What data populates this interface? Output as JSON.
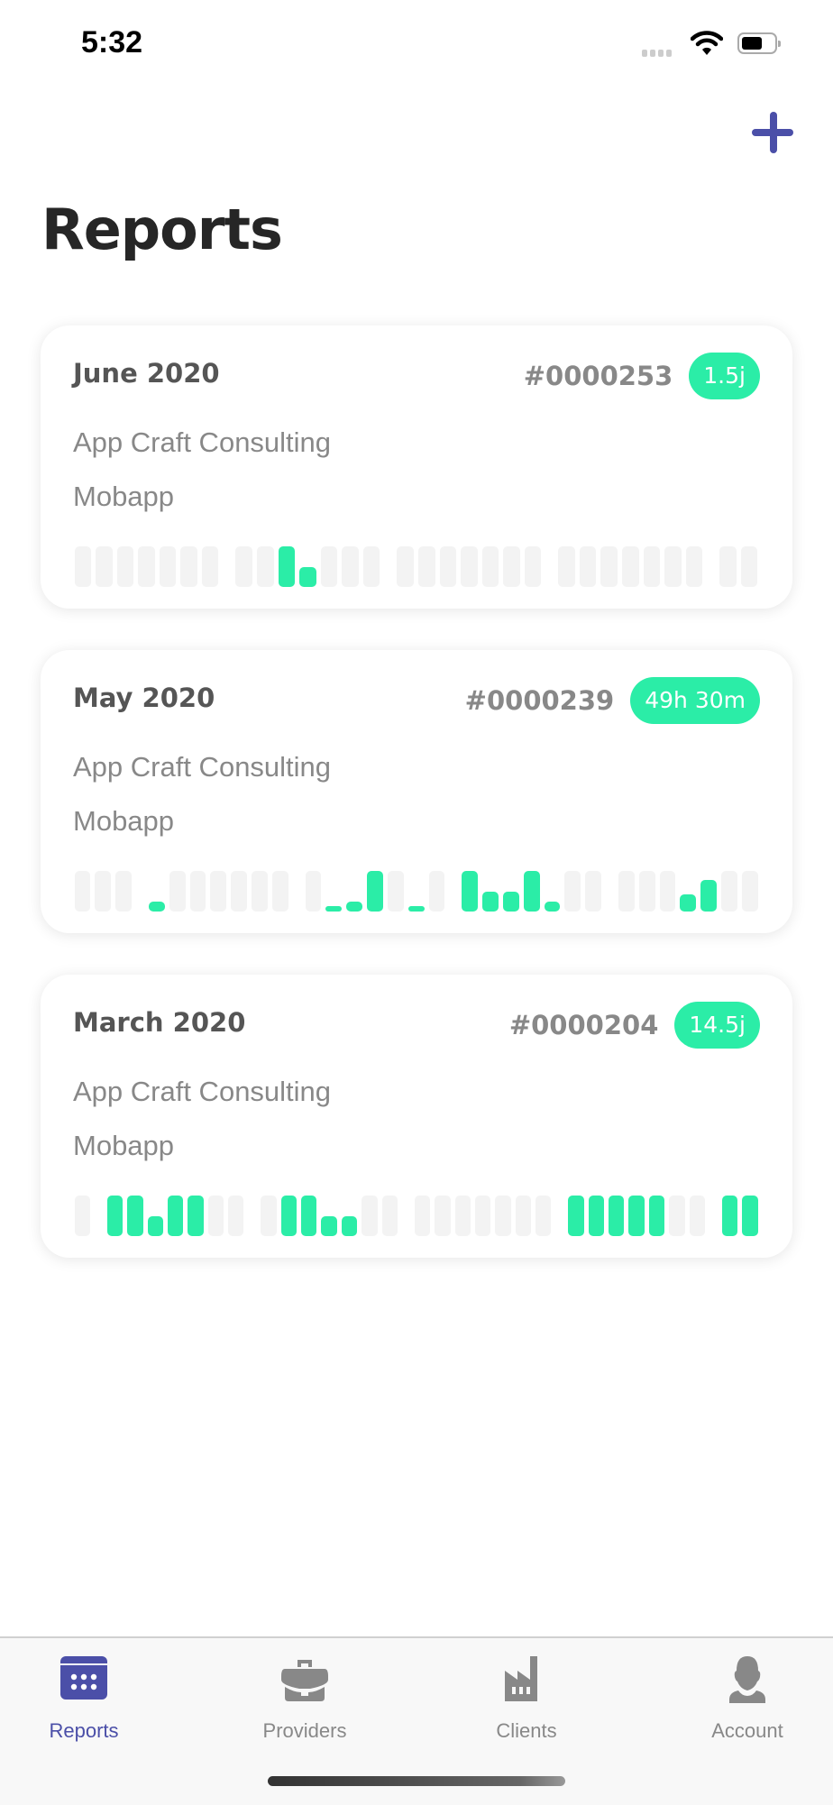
{
  "status_bar": {
    "time": "5:32"
  },
  "header": {
    "title": "Reports",
    "add_icon": "plus-icon",
    "accent_color": "#4b4fa8"
  },
  "colors": {
    "bar_active": "#2beda7",
    "bar_empty": "#f3f3f3"
  },
  "reports": [
    {
      "month": "June 2020",
      "number": "#0000253",
      "duration": "1.5j",
      "client": "App Craft Consulting",
      "project": "Mobapp",
      "days": [
        [
          0,
          0,
          0,
          0,
          0,
          0,
          0
        ],
        [
          0,
          0,
          1,
          0.5,
          0,
          0,
          0
        ],
        [
          0,
          0,
          0,
          0,
          0,
          0,
          0
        ],
        [
          0,
          0,
          0,
          0,
          0,
          0,
          0
        ],
        [
          0,
          0
        ]
      ]
    },
    {
      "month": "May 2020",
      "number": "#0000239",
      "duration": "49h 30m",
      "client": "App Craft Consulting",
      "project": "Mobapp",
      "days": [
        [
          0,
          0,
          0
        ],
        [
          0.25,
          0,
          0,
          0,
          0,
          0,
          0
        ],
        [
          0,
          0.1,
          0.25,
          1,
          0,
          0.1,
          0
        ],
        [
          1,
          0.5,
          0.5,
          1,
          0.25,
          0,
          0
        ],
        [
          0,
          0,
          0,
          0.43,
          0.78,
          0,
          0
        ]
      ]
    },
    {
      "month": "March 2020",
      "number": "#0000204",
      "duration": "14.5j",
      "client": "App Craft Consulting",
      "project": "Mobapp",
      "days": [
        [
          0
        ],
        [
          1,
          1,
          0.5,
          1,
          1,
          0,
          0
        ],
        [
          0,
          1,
          1,
          0.5,
          0.5,
          0,
          0
        ],
        [
          0,
          0,
          0,
          0,
          0,
          0,
          0
        ],
        [
          1,
          1,
          1,
          1,
          1,
          0,
          0
        ],
        [
          1,
          1
        ]
      ]
    }
  ],
  "tabs": [
    {
      "label": "Reports",
      "icon": "calendar-icon",
      "active": true
    },
    {
      "label": "Providers",
      "icon": "briefcase-icon",
      "active": false
    },
    {
      "label": "Clients",
      "icon": "factory-icon",
      "active": false
    },
    {
      "label": "Account",
      "icon": "user-icon",
      "active": false
    }
  ]
}
